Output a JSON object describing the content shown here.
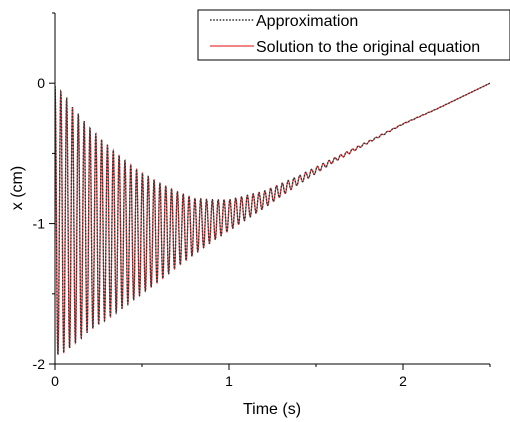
{
  "chart_data": {
    "type": "line",
    "xlabel": "Time (s)",
    "ylabel": "x (cm)",
    "xlim": [
      0,
      2.5
    ],
    "ylim": [
      -2,
      0.5
    ],
    "x_ticks": [
      0,
      1,
      2
    ],
    "y_ticks": [
      0,
      -1,
      -2
    ],
    "x_tick_labels": [
      "0",
      "1",
      "2"
    ],
    "y_tick_labels": [
      "0",
      "-1",
      "-2"
    ],
    "grid": false,
    "legend_position": "top-right",
    "series": [
      {
        "name": "Approximation",
        "color": "#333333",
        "style": "dotted",
        "t": [
          0,
          0.05,
          0.1,
          0.2,
          0.3,
          0.4,
          0.5,
          0.6,
          0.7,
          0.8,
          0.9,
          1.0,
          1.2,
          1.4,
          1.6,
          1.8,
          2.0,
          2.2,
          2.5
        ],
        "center": [
          -0.98,
          -1.0,
          -1.02,
          -1.04,
          -1.06,
          -1.07,
          -1.07,
          -1.06,
          -1.04,
          -1.02,
          -0.98,
          -0.94,
          -0.83,
          -0.69,
          -0.55,
          -0.42,
          -0.29,
          -0.18,
          0.0
        ],
        "amplitude": [
          0.96,
          0.92,
          0.85,
          0.72,
          0.62,
          0.52,
          0.43,
          0.35,
          0.27,
          0.2,
          0.15,
          0.11,
          0.06,
          0.03,
          0.015,
          0.007,
          0.003,
          0.001,
          0.0
        ],
        "oscillation_period_s": 0.0335,
        "x_start": 0,
        "x_end": 2.5,
        "y_end": 0.0
      },
      {
        "name": "Solution to the original equation",
        "color": "#e8393a",
        "style": "solid",
        "t": [
          0,
          0.05,
          0.1,
          0.2,
          0.3,
          0.4,
          0.5,
          0.6,
          0.7,
          0.8,
          0.9,
          1.0,
          1.2,
          1.4,
          1.6,
          1.8,
          2.0,
          2.2,
          2.5
        ],
        "center": [
          -0.98,
          -1.0,
          -1.02,
          -1.04,
          -1.06,
          -1.07,
          -1.07,
          -1.06,
          -1.04,
          -1.02,
          -0.98,
          -0.94,
          -0.83,
          -0.69,
          -0.55,
          -0.42,
          -0.29,
          -0.18,
          0.0
        ],
        "amplitude": [
          0.96,
          0.92,
          0.85,
          0.72,
          0.62,
          0.52,
          0.43,
          0.35,
          0.27,
          0.2,
          0.15,
          0.11,
          0.06,
          0.03,
          0.015,
          0.007,
          0.003,
          0.001,
          0.0
        ],
        "oscillation_period_s": 0.0335,
        "x_start": 0,
        "x_end": 2.5,
        "y_end": 0.0
      }
    ]
  }
}
